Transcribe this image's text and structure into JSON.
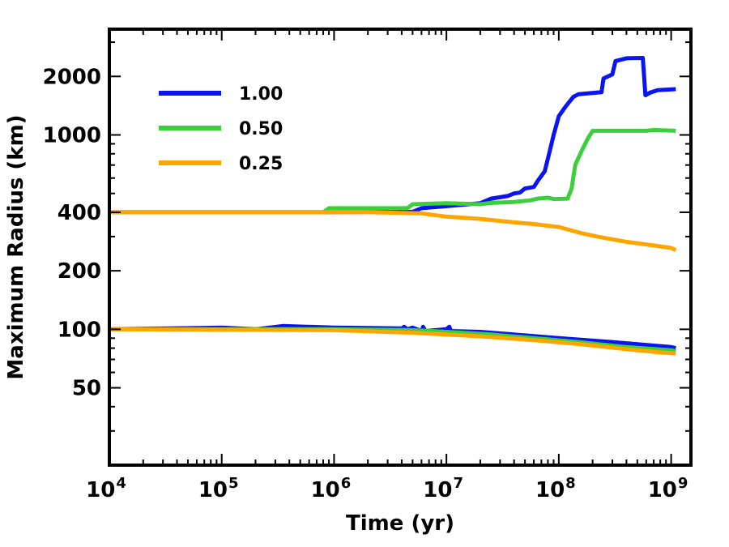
{
  "chart_data": {
    "type": "line",
    "xscale": "log",
    "yscale": "log",
    "xlim": [
      10000,
      1500000000
    ],
    "ylim": [
      20,
      3500
    ],
    "xlabel": "Time (yr)",
    "ylabel": "Maximum Radius (km)",
    "x_ticks": [
      {
        "value": 10000,
        "base": "10",
        "exp": "4"
      },
      {
        "value": 100000,
        "base": "10",
        "exp": "5"
      },
      {
        "value": 1000000,
        "base": "10",
        "exp": "6"
      },
      {
        "value": 10000000,
        "base": "10",
        "exp": "7"
      },
      {
        "value": 100000000,
        "base": "10",
        "exp": "8"
      },
      {
        "value": 1000000000,
        "base": "10",
        "exp": "9"
      }
    ],
    "y_ticks": [
      {
        "value": 50,
        "label": "50"
      },
      {
        "value": 100,
        "label": "100"
      },
      {
        "value": 200,
        "label": "200"
      },
      {
        "value": 400,
        "label": "400"
      },
      {
        "value": 1000,
        "label": "1000"
      },
      {
        "value": 2000,
        "label": "2000"
      }
    ],
    "legend": {
      "position": "top-left",
      "entries": [
        {
          "label": "1.00",
          "color": "#0a14f0"
        },
        {
          "label": "0.50",
          "color": "#3ccf3c"
        },
        {
          "label": "0.25",
          "color": "#ffa500"
        }
      ]
    },
    "series": [
      {
        "name": "1.00 (400 km)",
        "color": "#0a14f0",
        "points": [
          [
            10000,
            400
          ],
          [
            1000000,
            400
          ],
          [
            5000000,
            402
          ],
          [
            6000000,
            420
          ],
          [
            10000000,
            430
          ],
          [
            20000000,
            445
          ],
          [
            25000000,
            470
          ],
          [
            35000000,
            485
          ],
          [
            40000000,
            500
          ],
          [
            45000000,
            505
          ],
          [
            50000000,
            530
          ],
          [
            60000000,
            540
          ],
          [
            65000000,
            580
          ],
          [
            75000000,
            650
          ],
          [
            82000000,
            800
          ],
          [
            90000000,
            1000
          ],
          [
            100000000,
            1250
          ],
          [
            115000000,
            1400
          ],
          [
            135000000,
            1570
          ],
          [
            150000000,
            1620
          ],
          [
            240000000,
            1660
          ],
          [
            250000000,
            1950
          ],
          [
            300000000,
            2050
          ],
          [
            320000000,
            2400
          ],
          [
            400000000,
            2480
          ],
          [
            560000000,
            2490
          ],
          [
            590000000,
            1600
          ],
          [
            650000000,
            1650
          ],
          [
            760000000,
            1700
          ],
          [
            1100000000,
            1720
          ]
        ]
      },
      {
        "name": "0.50 (400 km)",
        "color": "#3ccf3c",
        "points": [
          [
            10000,
            400
          ],
          [
            800000,
            400
          ],
          [
            900000,
            420
          ],
          [
            4500000,
            420
          ],
          [
            5000000,
            440
          ],
          [
            10000000,
            445
          ],
          [
            20000000,
            440
          ],
          [
            25000000,
            447
          ],
          [
            40000000,
            452
          ],
          [
            55000000,
            460
          ],
          [
            65000000,
            470
          ],
          [
            80000000,
            475
          ],
          [
            90000000,
            468
          ],
          [
            120000000,
            470
          ],
          [
            130000000,
            530
          ],
          [
            140000000,
            700
          ],
          [
            160000000,
            830
          ],
          [
            180000000,
            950
          ],
          [
            200000000,
            1050
          ],
          [
            600000000,
            1050
          ],
          [
            700000000,
            1060
          ],
          [
            1100000000,
            1050
          ]
        ]
      },
      {
        "name": "0.25 (400 km)",
        "color": "#ffa500",
        "points": [
          [
            10000,
            400
          ],
          [
            2000000,
            400
          ],
          [
            6000000,
            395
          ],
          [
            10000000,
            380
          ],
          [
            20000000,
            370
          ],
          [
            40000000,
            355
          ],
          [
            60000000,
            348
          ],
          [
            100000000,
            336
          ],
          [
            160000000,
            312
          ],
          [
            220000000,
            300
          ],
          [
            400000000,
            282
          ],
          [
            700000000,
            270
          ],
          [
            1000000000,
            262
          ],
          [
            1100000000,
            255
          ]
        ]
      },
      {
        "name": "1.00 (100 km)",
        "color": "#0a14f0",
        "points": [
          [
            10000,
            100
          ],
          [
            100000,
            102
          ],
          [
            200000,
            100
          ],
          [
            350000,
            104
          ],
          [
            1000000,
            102
          ],
          [
            4000000,
            101
          ],
          [
            4200000,
            103
          ],
          [
            4500000,
            100
          ],
          [
            5000000,
            102
          ],
          [
            6000000,
            98
          ],
          [
            6200000,
            103
          ],
          [
            6500000,
            98
          ],
          [
            10000000,
            100
          ],
          [
            10600000,
            103
          ],
          [
            11000000,
            98
          ],
          [
            20000000,
            97
          ],
          [
            50000000,
            93
          ],
          [
            100000000,
            90
          ],
          [
            300000000,
            86
          ],
          [
            1000000000,
            81
          ],
          [
            1100000000,
            80
          ]
        ]
      },
      {
        "name": "0.50 (100 km)",
        "color": "#3ccf3c",
        "points": [
          [
            10000,
            100
          ],
          [
            1000000,
            100
          ],
          [
            5000000,
            99
          ],
          [
            10000000,
            97
          ],
          [
            25000000,
            94
          ],
          [
            60000000,
            90
          ],
          [
            150000000,
            86
          ],
          [
            400000000,
            81
          ],
          [
            1000000000,
            78
          ],
          [
            1100000000,
            77
          ]
        ]
      },
      {
        "name": "0.25 (100 km)",
        "color": "#ffa500",
        "points": [
          [
            10000,
            100
          ],
          [
            1000000,
            99
          ],
          [
            5000000,
            96
          ],
          [
            20000000,
            92
          ],
          [
            60000000,
            88
          ],
          [
            150000000,
            84
          ],
          [
            400000000,
            79
          ],
          [
            800000000,
            76
          ],
          [
            1100000000,
            75
          ]
        ]
      }
    ]
  }
}
